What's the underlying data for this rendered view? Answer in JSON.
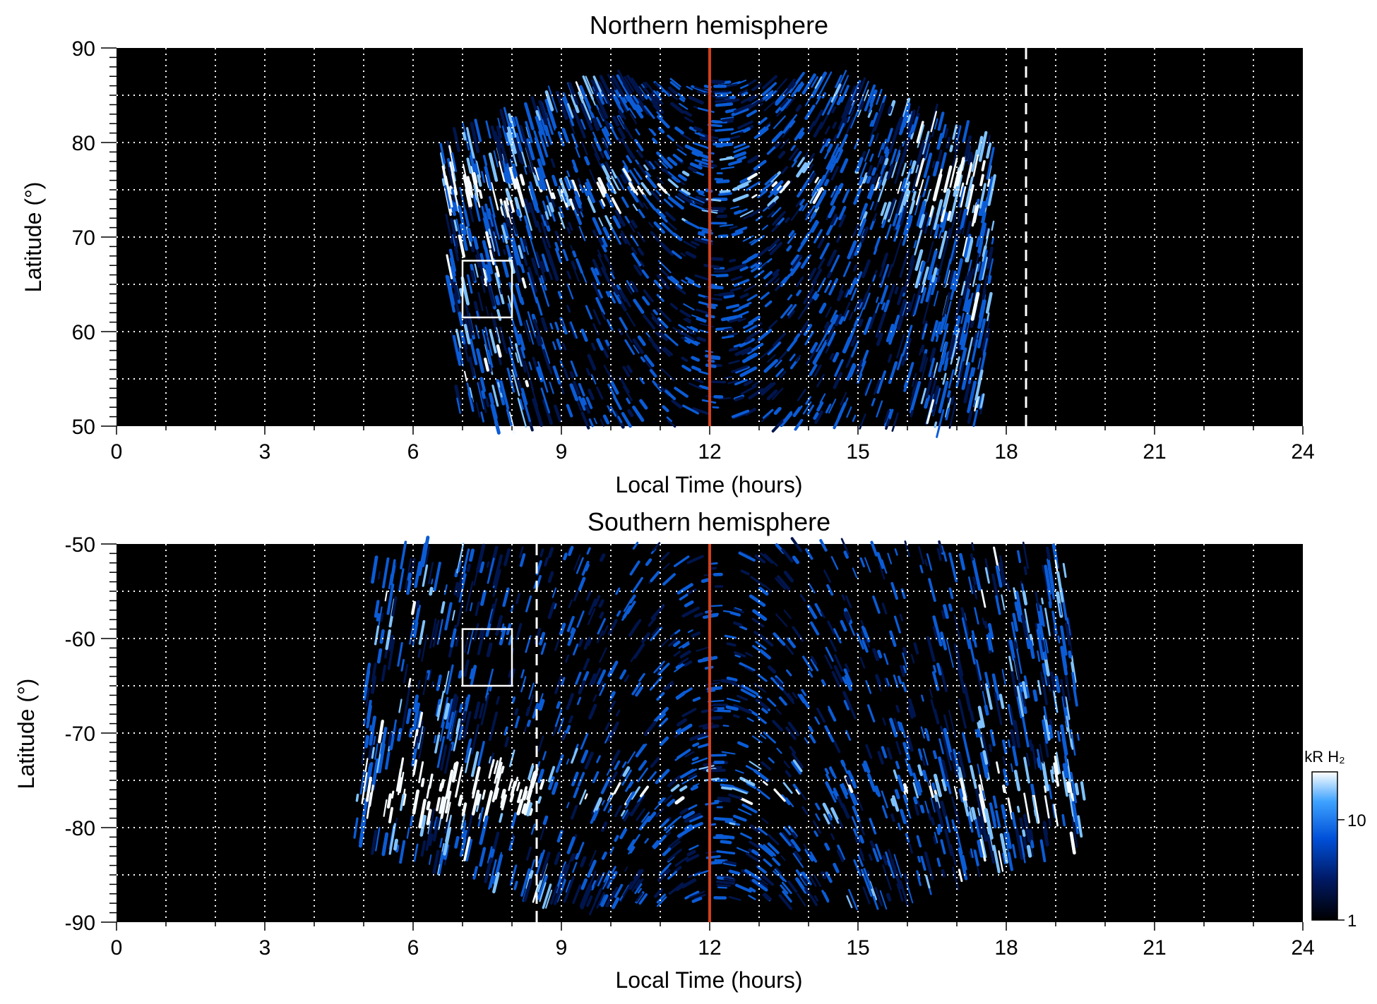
{
  "colors": {
    "background": "#000000",
    "aurora_dark": "#00154d",
    "aurora_mid": "#0b5cd6",
    "aurora_light": "#7fc2ff",
    "aurora_white": "#f5fbff",
    "noon_line": "#d2401c",
    "grid": "#ffffff",
    "box": "#ffffff"
  },
  "chart_data": [
    {
      "type": "heatmap",
      "title": "Northern hemisphere",
      "xlabel": "Local Time (hours)",
      "ylabel": "Latitude (°)",
      "xlim": [
        0,
        24
      ],
      "ylim": [
        50,
        90
      ],
      "xticks": [
        0,
        3,
        6,
        9,
        12,
        15,
        18,
        21,
        24
      ],
      "yticks": [
        50,
        60,
        70,
        80,
        90
      ],
      "grid": true,
      "grid_x_step": 1,
      "grid_y_step": 5,
      "noon_line_lt": 12,
      "dashed_line_lt": 18.4,
      "highlight_box": {
        "lt": [
          7,
          8
        ],
        "lat": [
          61.5,
          67.5
        ]
      },
      "coverage": {
        "lt_min": 6.5,
        "lt_max": 18.0,
        "lat_top": 86.5
      },
      "features": [
        {
          "name": "main auroral oval",
          "lat": 75,
          "lt": [
            7,
            17.5
          ]
        },
        {
          "name": "polar cap",
          "lat_max": 85,
          "lt": [
            9,
            15
          ]
        }
      ]
    },
    {
      "type": "heatmap",
      "title": "Southern hemisphere",
      "xlabel": "Local Time (hours)",
      "ylabel": "Latitude (°)",
      "xlim": [
        0,
        24
      ],
      "ylim": [
        -90,
        -50
      ],
      "xticks": [
        0,
        3,
        6,
        9,
        12,
        15,
        18,
        21,
        24
      ],
      "yticks": [
        -50,
        -60,
        -70,
        -80,
        -90
      ],
      "grid": true,
      "grid_x_step": 1,
      "grid_y_step": 5,
      "noon_line_lt": 12,
      "dashed_line_lt": 8.5,
      "highlight_box": {
        "lt": [
          7,
          8
        ],
        "lat": [
          -65,
          -59
        ]
      },
      "coverage": {
        "lt_min": 4.6,
        "lt_max": 19.7,
        "lat_bottom": -88
      },
      "features": [
        {
          "name": "main auroral oval",
          "lat": -76,
          "lt": [
            6,
            18
          ]
        },
        {
          "name": "bright dawn arc",
          "lat": -74,
          "lt": [
            6,
            8.5
          ]
        }
      ]
    }
  ],
  "colorbar": {
    "label": "kR H₂",
    "ticks": [
      {
        "value": 1,
        "label": "1"
      },
      {
        "value": 10,
        "label": "10"
      }
    ],
    "range": [
      1,
      30
    ],
    "scale": "log"
  }
}
